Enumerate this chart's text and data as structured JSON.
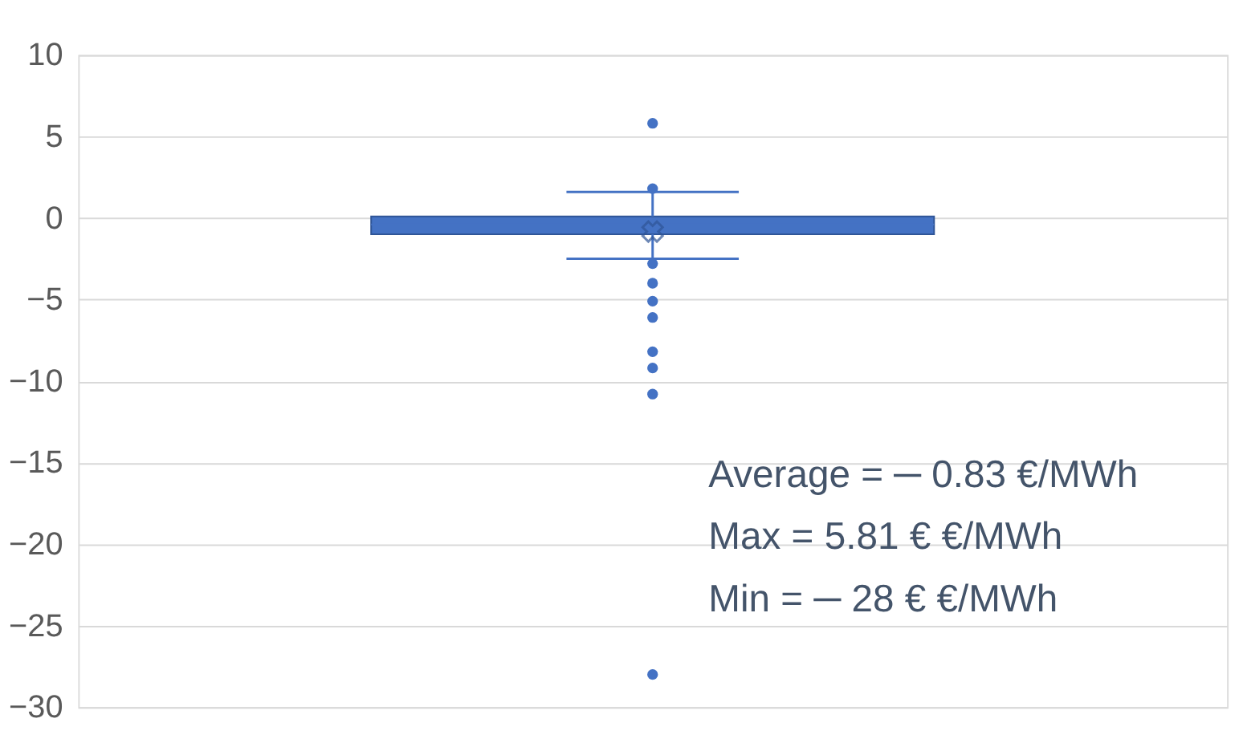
{
  "chart_data": {
    "type": "box",
    "categories": [
      null
    ],
    "color": "#4472c4",
    "boxes": [
      {
        "low": -2.5,
        "q1": -1.0,
        "median": -0.4,
        "q3": 0.1,
        "high": 1.6,
        "mean": -0.83,
        "outliers": [
          5.81,
          1.8,
          -2.8,
          -4,
          -5.1,
          -6.1,
          -8.2,
          -9.2,
          -10.8,
          -28
        ]
      }
    ],
    "ylim": [
      -30,
      10
    ],
    "yticks": [
      -30,
      -25,
      -20,
      -15,
      -10,
      -5,
      0,
      5,
      10
    ],
    "grid": "y",
    "tick_labels": "y",
    "annotations": [
      "Average = ─ 0.83 €/MWh",
      "Max       = 5.81 € €/MWh",
      "Min       = ─ 28 € €/MWh"
    ]
  }
}
